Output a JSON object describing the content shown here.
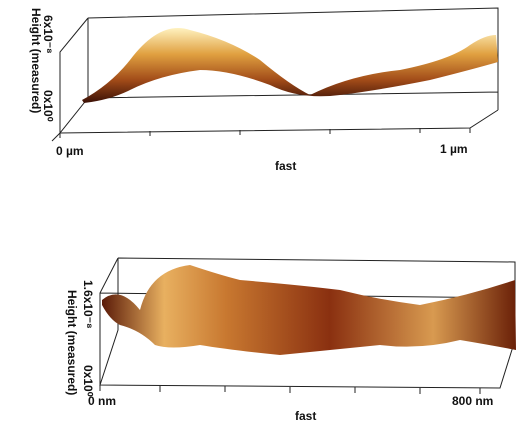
{
  "panels": [
    {
      "z_top_label": "6x10⁻⁸",
      "z_axis_label": "Height (measured)",
      "z_bottom_label": "0x10⁰",
      "x_start": "0 µm",
      "x_end": "1 µm",
      "x_axis_label": "fast"
    },
    {
      "z_top_label": "1.6x10⁻⁸",
      "z_axis_label": "Height (measured)",
      "z_bottom_label": "0x10⁰",
      "x_start": "0 nm",
      "x_end": "800 nm",
      "x_axis_label": "fast"
    }
  ]
}
